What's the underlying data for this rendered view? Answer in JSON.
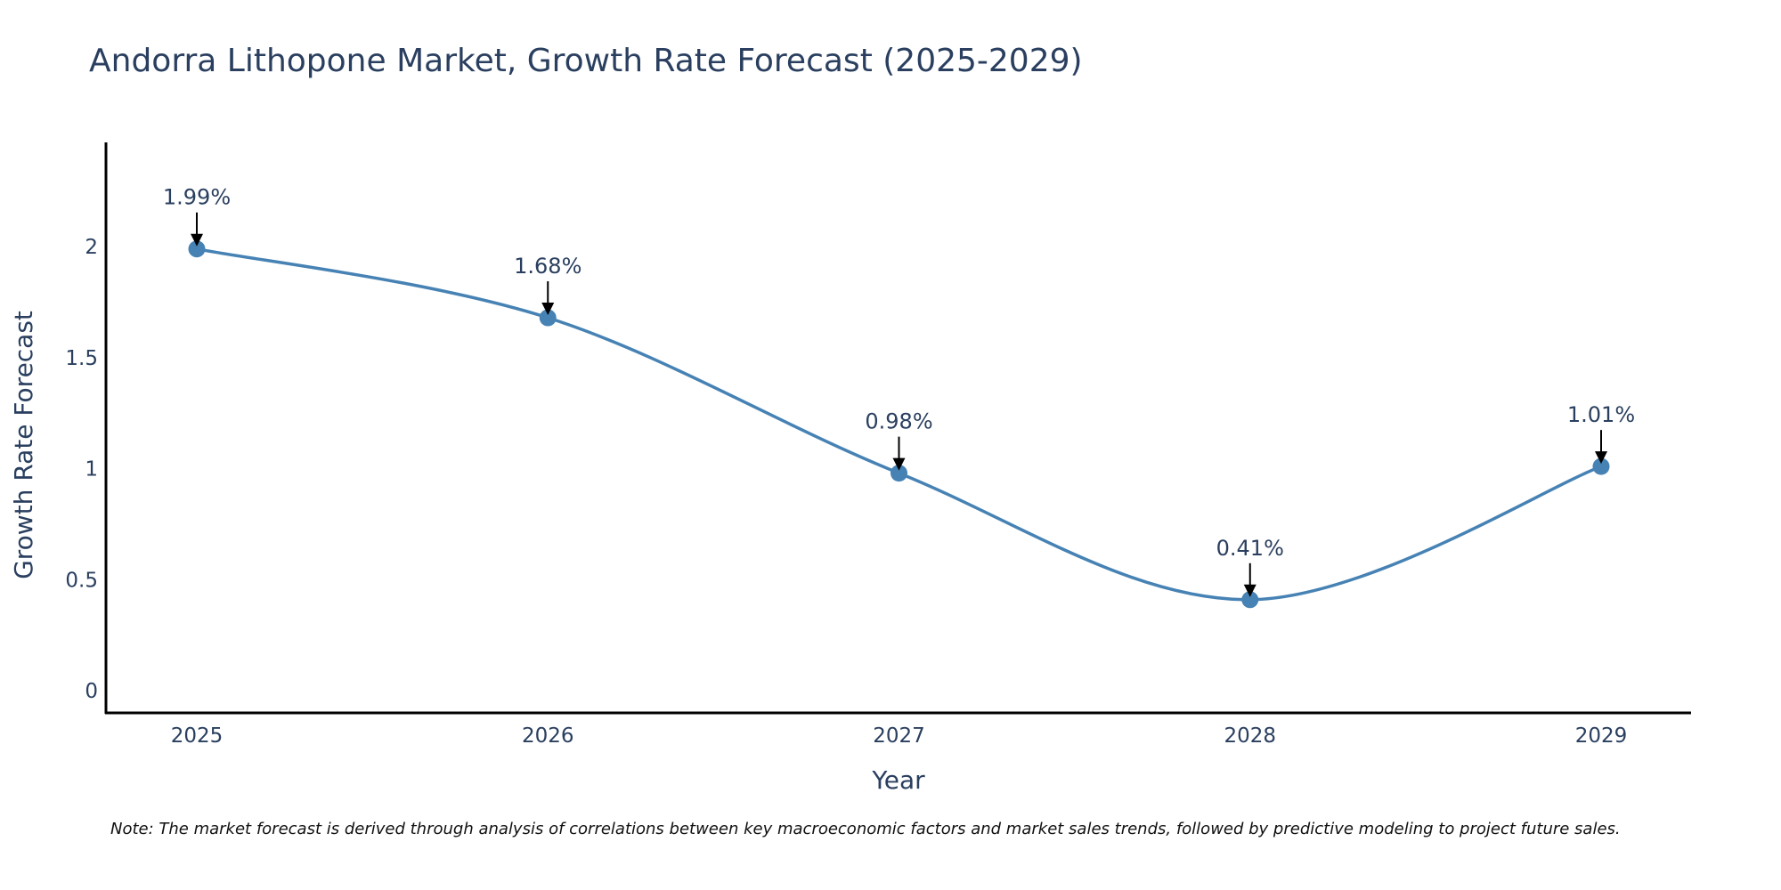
{
  "chart_data": {
    "type": "line",
    "title": "Andorra Lithopone Market, Growth Rate Forecast (2025-2029)",
    "xlabel": "Year",
    "ylabel": "Growth Rate Forecast",
    "categories": [
      "2025",
      "2026",
      "2027",
      "2028",
      "2029"
    ],
    "series": [
      {
        "name": "Growth Rate Forecast",
        "values": [
          1.99,
          1.68,
          0.98,
          0.41,
          1.01
        ],
        "labels": [
          "1.99%",
          "1.68%",
          "0.98%",
          "0.41%",
          "1.01%"
        ]
      }
    ],
    "yticks": [
      0,
      0.5,
      1,
      1.5,
      2
    ],
    "ytick_labels": [
      "0",
      "0.5",
      "1",
      "1.5",
      "2"
    ],
    "ylim": [
      -0.1,
      2.47
    ],
    "smoothing": "spline",
    "grid": false,
    "line_color": "#4682b4",
    "marker_color": "#4682b4",
    "arrow_color": "#000000",
    "axis_color": "#000000",
    "text_color": "#2a3f5f"
  },
  "note": "Note: The market forecast is derived through analysis of correlations between key macroeconomic factors and market sales trends, followed by predictive modeling to project future sales."
}
